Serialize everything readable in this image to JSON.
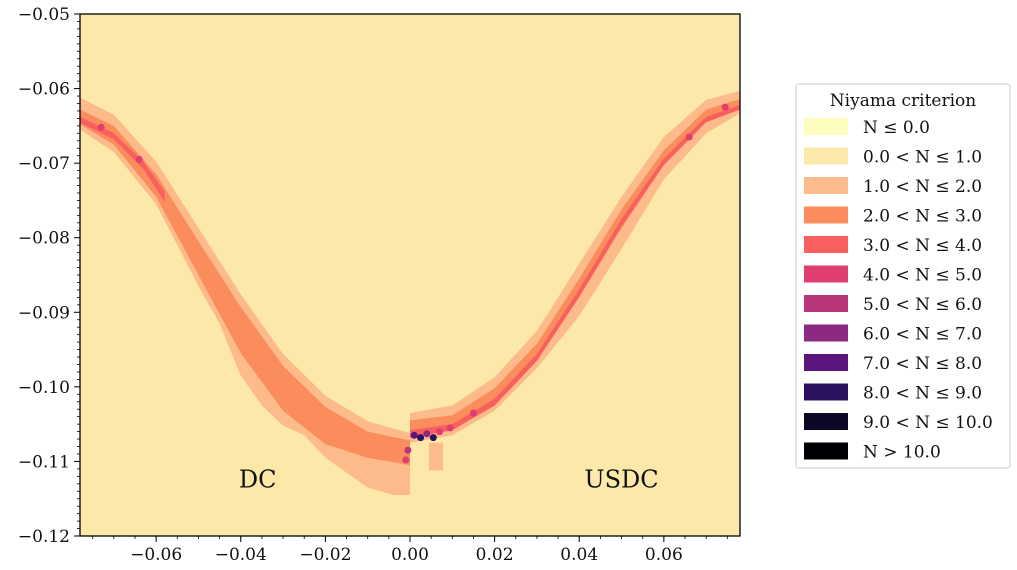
{
  "chart_data": {
    "type": "heatmap",
    "title": "",
    "xlabel": "",
    "ylabel": "",
    "xlim": [
      -0.078,
      0.078
    ],
    "ylim": [
      -0.12,
      -0.05
    ],
    "x_ticks": [
      "−0.06",
      "−0.04",
      "−0.02",
      "0.00",
      "0.02",
      "0.04",
      "0.06"
    ],
    "x_tick_values": [
      -0.06,
      -0.04,
      -0.02,
      0.0,
      0.02,
      0.04,
      0.06
    ],
    "y_ticks": [
      "−0.05",
      "−0.06",
      "−0.07",
      "−0.08",
      "−0.09",
      "−0.10",
      "−0.11",
      "−0.12"
    ],
    "y_tick_values": [
      -0.05,
      -0.06,
      -0.07,
      -0.08,
      -0.09,
      -0.1,
      -0.11,
      -0.12
    ],
    "grid": false,
    "background_color": "#fce8a8",
    "colormap": "magma",
    "legend": {
      "title": "Niyama criterion",
      "placement": "right",
      "entries": [
        {
          "label": "N ≤ 0.0",
          "color": "#fcfdbf"
        },
        {
          "label": "0.0 < N ≤ 1.0",
          "color": "#fce8a8"
        },
        {
          "label": "1.0 < N ≤ 2.0",
          "color": "#fdba8a"
        },
        {
          "label": "2.0 < N ≤ 3.0",
          "color": "#fb8c5c"
        },
        {
          "label": "3.0 < N ≤ 4.0",
          "color": "#f7605e"
        },
        {
          "label": "4.0 < N ≤ 5.0",
          "color": "#e03e6f"
        },
        {
          "label": "5.0 < N ≤ 6.0",
          "color": "#b73779"
        },
        {
          "label": "6.0 < N ≤ 7.0",
          "color": "#8c2981"
        },
        {
          "label": "7.0 < N ≤ 8.0",
          "color": "#5a167e"
        },
        {
          "label": "8.0 < N ≤ 9.0",
          "color": "#2c115f"
        },
        {
          "label": "9.0 < N ≤ 10.0",
          "color": "#0c0926"
        },
        {
          "label": "N > 10.0",
          "color": "#000004"
        }
      ]
    },
    "annotations": [
      {
        "text": "DC",
        "x": -0.036,
        "y": -0.1135
      },
      {
        "text": "USDC",
        "x": 0.05,
        "y": -0.1135
      }
    ],
    "bands": [
      {
        "region": "DC",
        "level": "1.0 < N ≤ 2.0",
        "color": "#fdba8a",
        "upper": [
          [
            -0.078,
            -0.0612
          ],
          [
            -0.07,
            -0.0635
          ],
          [
            -0.06,
            -0.0698
          ],
          [
            -0.05,
            -0.0787
          ],
          [
            -0.04,
            -0.0876
          ],
          [
            -0.03,
            -0.0956
          ],
          [
            -0.02,
            -0.1012
          ],
          [
            -0.01,
            -0.1046
          ],
          [
            0.0,
            -0.1062
          ]
        ],
        "lower": [
          [
            -0.078,
            -0.0655
          ],
          [
            -0.07,
            -0.0685
          ],
          [
            -0.06,
            -0.0755
          ],
          [
            -0.05,
            -0.0865
          ],
          [
            -0.045,
            -0.0915
          ],
          [
            -0.04,
            -0.0985
          ],
          [
            -0.035,
            -0.1025
          ],
          [
            -0.03,
            -0.1052
          ],
          [
            -0.025,
            -0.1065
          ],
          [
            -0.02,
            -0.1095
          ],
          [
            -0.01,
            -0.1135
          ],
          [
            -0.004,
            -0.1145
          ],
          [
            0.0,
            -0.1145
          ]
        ]
      },
      {
        "region": "DC",
        "level": "2.0 < N ≤ 3.0",
        "color": "#fb8c5c",
        "upper": [
          [
            -0.078,
            -0.0628
          ],
          [
            -0.07,
            -0.065
          ],
          [
            -0.06,
            -0.0715
          ],
          [
            -0.05,
            -0.0805
          ],
          [
            -0.04,
            -0.0893
          ],
          [
            -0.03,
            -0.0972
          ],
          [
            -0.02,
            -0.1027
          ],
          [
            -0.01,
            -0.106
          ],
          [
            0.0,
            -0.1072
          ]
        ],
        "lower": [
          [
            -0.078,
            -0.0648
          ],
          [
            -0.07,
            -0.0675
          ],
          [
            -0.06,
            -0.0745
          ],
          [
            -0.05,
            -0.085
          ],
          [
            -0.04,
            -0.0955
          ],
          [
            -0.03,
            -0.1032
          ],
          [
            -0.02,
            -0.1077
          ],
          [
            -0.01,
            -0.1095
          ],
          [
            0.0,
            -0.1105
          ]
        ]
      },
      {
        "region": "DC",
        "level": "3.0 < N ≤ 4.0",
        "color": "#f7605e",
        "upper": [
          [
            -0.078,
            -0.0638
          ],
          [
            -0.07,
            -0.066
          ],
          [
            -0.063,
            -0.0698
          ],
          [
            -0.058,
            -0.0738
          ]
        ],
        "lower": [
          [
            -0.078,
            -0.0646
          ],
          [
            -0.07,
            -0.0668
          ],
          [
            -0.063,
            -0.0708
          ],
          [
            -0.058,
            -0.0752
          ]
        ]
      },
      {
        "region": "USDC",
        "level": "1.0 < N ≤ 2.0",
        "color": "#fdba8a",
        "upper": [
          [
            0.0,
            -0.1035
          ],
          [
            0.01,
            -0.1025
          ],
          [
            0.02,
            -0.0987
          ],
          [
            0.03,
            -0.0925
          ],
          [
            0.04,
            -0.0835
          ],
          [
            0.05,
            -0.0745
          ],
          [
            0.06,
            -0.0665
          ],
          [
            0.07,
            -0.0615
          ],
          [
            0.078,
            -0.0603
          ]
        ],
        "lower": [
          [
            0.0,
            -0.1075
          ],
          [
            0.01,
            -0.1065
          ],
          [
            0.02,
            -0.1032
          ],
          [
            0.03,
            -0.0975
          ],
          [
            0.04,
            -0.0905
          ],
          [
            0.05,
            -0.0815
          ],
          [
            0.06,
            -0.0722
          ],
          [
            0.07,
            -0.066
          ],
          [
            0.078,
            -0.0633
          ]
        ]
      },
      {
        "region": "USDC",
        "level": "2.0 < N ≤ 3.0",
        "color": "#fb8c5c",
        "upper": [
          [
            0.0,
            -0.1045
          ],
          [
            0.01,
            -0.1038
          ],
          [
            0.02,
            -0.1002
          ],
          [
            0.03,
            -0.0942
          ],
          [
            0.04,
            -0.0855
          ],
          [
            0.05,
            -0.0762
          ],
          [
            0.06,
            -0.0683
          ],
          [
            0.07,
            -0.0628
          ],
          [
            0.078,
            -0.0614
          ]
        ],
        "lower": [
          [
            0.0,
            -0.1068
          ],
          [
            0.01,
            -0.1058
          ],
          [
            0.02,
            -0.1025
          ],
          [
            0.03,
            -0.0965
          ],
          [
            0.04,
            -0.088
          ],
          [
            0.05,
            -0.0787
          ],
          [
            0.06,
            -0.0703
          ],
          [
            0.07,
            -0.0645
          ],
          [
            0.078,
            -0.0628
          ]
        ]
      },
      {
        "region": "USDC",
        "level": "3.0 < N ≤ 4.0",
        "color": "#f7605e",
        "upper": [
          [
            0.0,
            -0.1058
          ],
          [
            0.01,
            -0.105
          ],
          [
            0.02,
            -0.1016
          ],
          [
            0.03,
            -0.0956
          ],
          [
            0.04,
            -0.0869
          ],
          [
            0.05,
            -0.0775
          ],
          [
            0.06,
            -0.0694
          ],
          [
            0.07,
            -0.0638
          ],
          [
            0.078,
            -0.0622
          ]
        ],
        "lower": [
          [
            0.0,
            -0.1068
          ],
          [
            0.01,
            -0.1058
          ],
          [
            0.02,
            -0.1025
          ],
          [
            0.03,
            -0.0965
          ],
          [
            0.04,
            -0.0879
          ],
          [
            0.05,
            -0.0785
          ],
          [
            0.06,
            -0.0702
          ],
          [
            0.07,
            -0.0645
          ],
          [
            0.078,
            -0.0628
          ]
        ]
      },
      {
        "region": "USDC",
        "level": "1.0 < N ≤ 2.0",
        "color": "#fdba8a",
        "upper": [
          [
            0.0045,
            -0.1075
          ],
          [
            0.0078,
            -0.1075
          ]
        ],
        "lower": [
          [
            0.0045,
            -0.1112
          ],
          [
            0.0078,
            -0.1112
          ]
        ]
      }
    ],
    "hot_spots": [
      {
        "x": 0.001,
        "y": -0.1065,
        "level": "7.0 < N ≤ 8.0",
        "color": "#5a167e"
      },
      {
        "x": 0.0025,
        "y": -0.1068,
        "level": "8.0 < N ≤ 9.0",
        "color": "#2c115f"
      },
      {
        "x": 0.004,
        "y": -0.1063,
        "level": "6.0 < N ≤ 7.0",
        "color": "#8c2981"
      },
      {
        "x": 0.0055,
        "y": -0.1068,
        "level": "8.0 < N ≤ 9.0",
        "color": "#2c115f"
      },
      {
        "x": 0.007,
        "y": -0.106,
        "level": "4.0 < N ≤ 5.0",
        "color": "#e03e6f"
      },
      {
        "x": 0.0095,
        "y": -0.1055,
        "level": "4.0 < N ≤ 5.0",
        "color": "#e03e6f"
      },
      {
        "x": 0.015,
        "y": -0.1035,
        "level": "4.0 < N ≤ 5.0",
        "color": "#e03e6f"
      },
      {
        "x": -0.001,
        "y": -0.1098,
        "level": "4.0 < N ≤ 5.0",
        "color": "#e03e6f"
      },
      {
        "x": -0.0005,
        "y": -0.1085,
        "level": "5.0 < N ≤ 6.0",
        "color": "#b73779"
      },
      {
        "x": -0.073,
        "y": -0.0652,
        "level": "4.0 < N ≤ 5.0",
        "color": "#e03e6f"
      },
      {
        "x": -0.064,
        "y": -0.0695,
        "level": "4.0 < N ≤ 5.0",
        "color": "#e03e6f"
      },
      {
        "x": 0.0745,
        "y": -0.0625,
        "level": "4.0 < N ≤ 5.0",
        "color": "#e03e6f"
      },
      {
        "x": 0.066,
        "y": -0.0665,
        "level": "4.0 < N ≤ 5.0",
        "color": "#e03e6f"
      }
    ]
  }
}
